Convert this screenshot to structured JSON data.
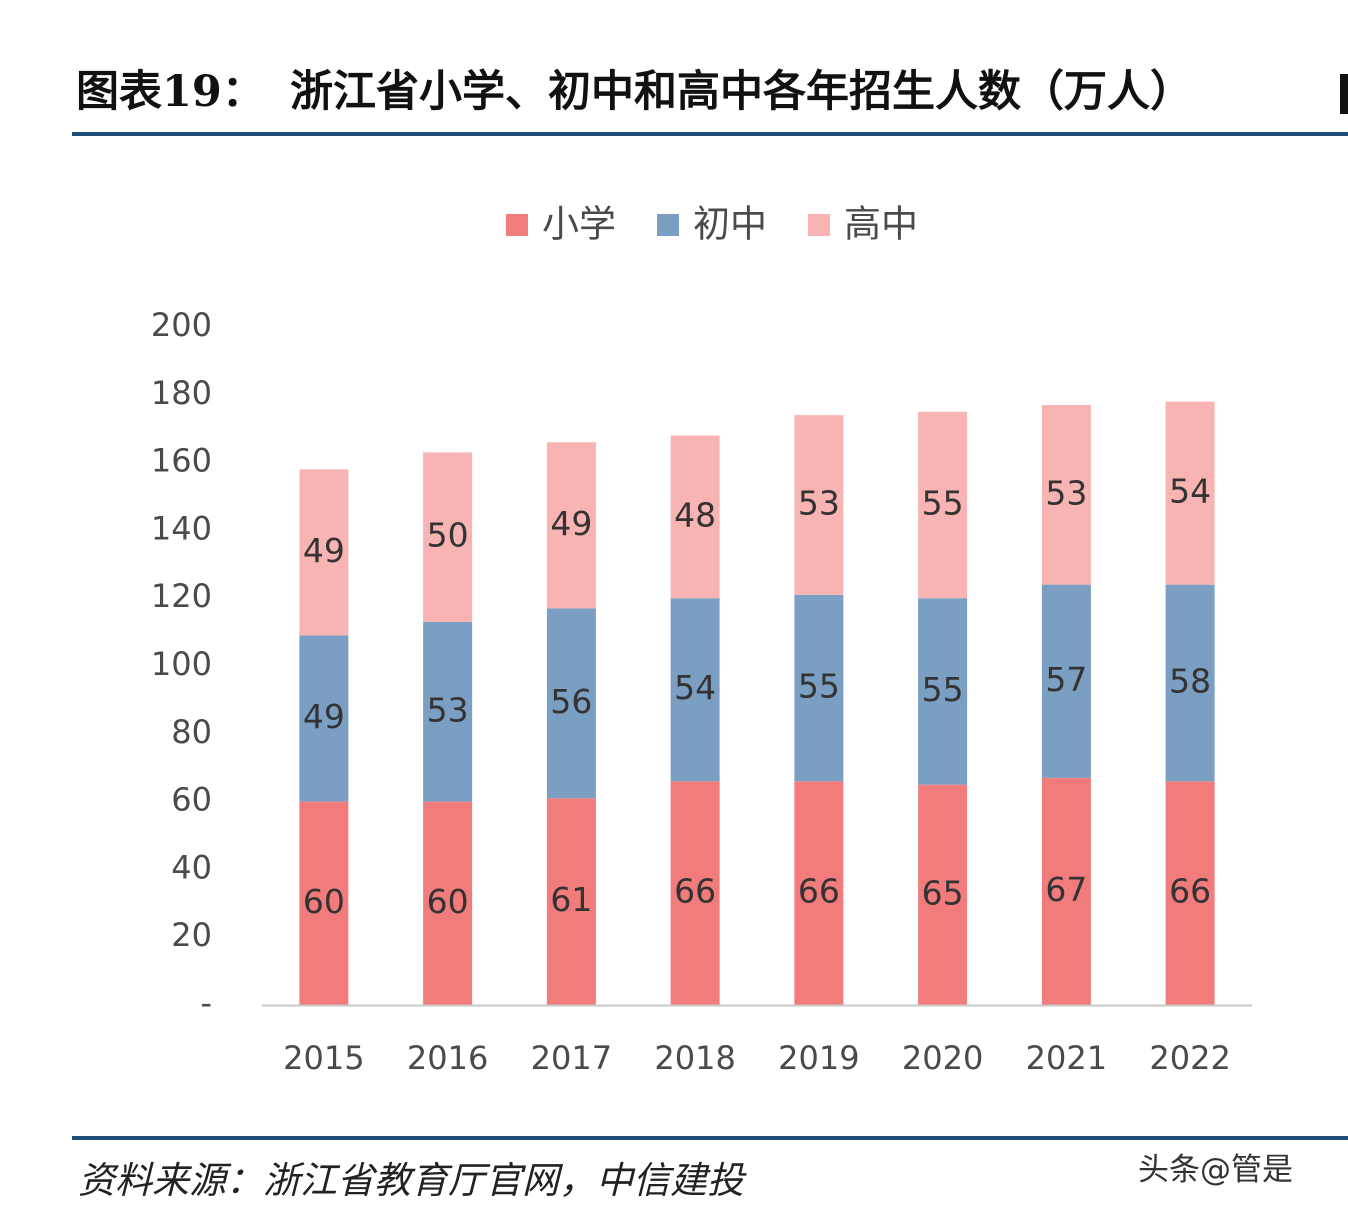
{
  "header": {
    "label": "图表19：",
    "title": "浙江省小学、初中和高中各年招生人数（万人）"
  },
  "footer": {
    "source": "资料来源：浙江省教育厅官网，中信建投",
    "watermark": "头条@管是"
  },
  "colors": {
    "rule": "#1f4e79",
    "primary": "#f27b7b",
    "middle": "#7b9fc3",
    "high": "#f8b3b3",
    "axis": "#c8c8c8",
    "text": "#4a4a4a",
    "label": "#333333"
  },
  "chart_data": {
    "type": "bar",
    "stacked": true,
    "categories": [
      "2015",
      "2016",
      "2017",
      "2018",
      "2019",
      "2020",
      "2021",
      "2022"
    ],
    "series": [
      {
        "name": "小学",
        "color": "#f27b7b",
        "values": [
          60,
          60,
          61,
          66,
          66,
          65,
          67,
          66
        ]
      },
      {
        "name": "初中",
        "color": "#7b9fc3",
        "values": [
          49,
          53,
          56,
          54,
          55,
          55,
          57,
          58
        ]
      },
      {
        "name": "高中",
        "color": "#f8b3b3",
        "values": [
          49,
          50,
          49,
          48,
          53,
          55,
          53,
          54
        ]
      }
    ],
    "ylim": [
      0,
      200
    ],
    "yticks": [
      0,
      20,
      40,
      60,
      80,
      100,
      120,
      140,
      160,
      180,
      200
    ],
    "ytick_labels": [
      "-",
      "20",
      "40",
      "60",
      "80",
      "100",
      "120",
      "140",
      "160",
      "180",
      "200"
    ],
    "legend_position": "top-center",
    "grid": false
  }
}
